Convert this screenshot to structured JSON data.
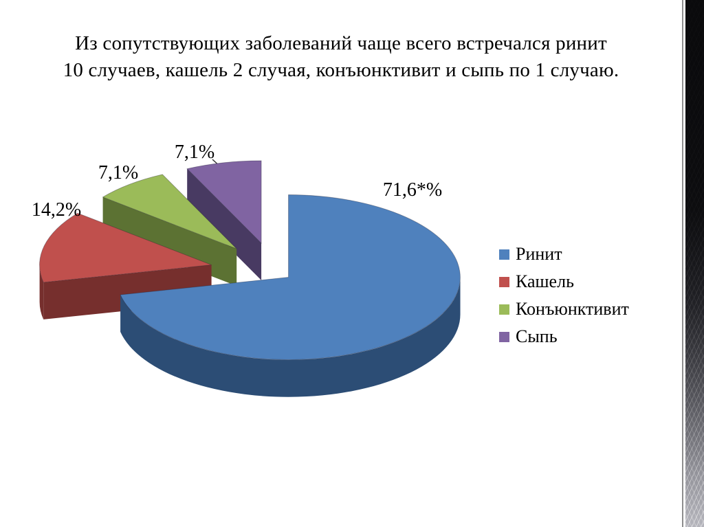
{
  "slide": {
    "title_line1": "Из сопутствующих заболеваний чаще всего встречался ринит",
    "title_line2": "10 случаев, кашель 2 случая, конъюнктивит и сыпь по 1 случаю."
  },
  "chart_data": {
    "type": "pie",
    "effect": "3d-exploded",
    "unit": "%",
    "start_angle_deg": 0,
    "direction": "clockwise",
    "legend_position": "right",
    "slices": [
      {
        "name": "Ринит",
        "value": 71.6,
        "label": "71,6*%",
        "color": "#4f81bd",
        "side_color": "#2c4d75",
        "explode": 0.1
      },
      {
        "name": "Кашель",
        "value": 14.2,
        "label": "14,2%",
        "color": "#c0504d",
        "side_color": "#762f2d",
        "explode": 0.38
      },
      {
        "name": "Конъюнктивит",
        "value": 7.1,
        "label": "7,1%",
        "color": "#9bbb59",
        "side_color": "#5c7233",
        "explode": 0.36
      },
      {
        "name": "Сыпь",
        "value": 7.1,
        "label": "7,1%",
        "color": "#8064a2",
        "side_color": "#483a62",
        "explode": 0.36
      }
    ]
  }
}
